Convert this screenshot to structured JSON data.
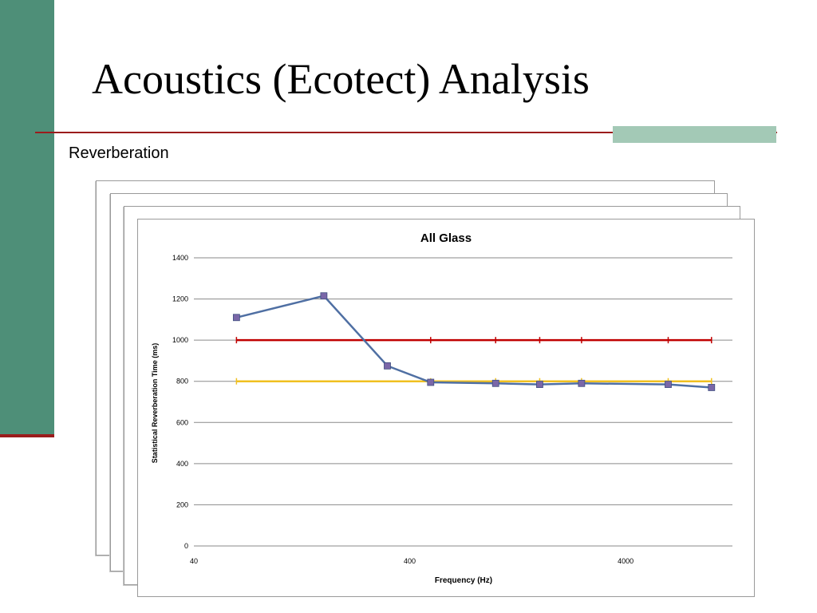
{
  "slide": {
    "title": "Acoustics (Ecotect) Analysis",
    "subtitle": "Reverberation"
  },
  "colors": {
    "left_bar": "#4e8f78",
    "rule": "#9b1c1c",
    "accent_block": "#a3c9b6",
    "series_line": "#4f6fa3",
    "series_marker": "#7a67a8",
    "upper_limit": "#c00000",
    "lower_limit": "#f0c020",
    "grid": "#8a8a8a"
  },
  "chart_data": {
    "type": "line",
    "title": "All Glass",
    "xlabel": "Frequency (Hz)",
    "ylabel": "Statistical Reverberation Time (ms)",
    "xscale": "log",
    "xlim": [
      40,
      12500
    ],
    "ylim": [
      0,
      1400
    ],
    "yticks": [
      0,
      200,
      400,
      600,
      800,
      1000,
      1200,
      1400
    ],
    "xticks": [
      40,
      400,
      4000
    ],
    "xtick_labels": [
      "40",
      "400",
      "4000"
    ],
    "grid": "horizontal",
    "legend": "none",
    "series": [
      {
        "x": [
          63,
          160,
          315,
          500,
          1000,
          1600,
          2500,
          6300,
          10000
        ],
        "y": [
          1110,
          1215,
          875,
          795,
          790,
          785,
          790,
          785,
          770
        ]
      },
      {
        "x": [
          63,
          10000
        ],
        "y": [
          1000,
          1000
        ]
      },
      {
        "x": [
          63,
          10000
        ],
        "y": [
          800,
          800
        ]
      }
    ]
  }
}
